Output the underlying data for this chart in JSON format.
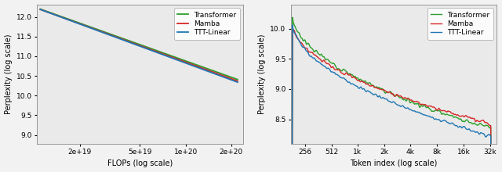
{
  "left": {
    "xlabel": "FLOPs (log scale)",
    "ylabel": "Perplexity (log scale)",
    "xlim": [
      1.05e+19,
      2.4e+20
    ],
    "ylim": [
      8.78,
      12.32
    ],
    "xticks": [
      2e+19,
      5e+19,
      1e+20,
      2e+20
    ],
    "xtick_labels": [
      "2e+19",
      "5e+19",
      "1e+20",
      "2e+20"
    ],
    "yticks": [
      9.0,
      9.5,
      10.0,
      10.5,
      11.0,
      11.5,
      12.0
    ],
    "transformer_color": "#2ca02c",
    "mamba_color": "#d62728",
    "ttt_color": "#1f77b4",
    "bg_color": "#eaeaea"
  },
  "right": {
    "xlabel": "Token index (log scale)",
    "ylabel": "Perplexity (log scale)",
    "xlim": [
      175,
      38000
    ],
    "ylim": [
      8.1,
      10.4
    ],
    "xticks": [
      256,
      512,
      1000,
      2000,
      4000,
      8000,
      16000,
      32000
    ],
    "xtick_labels": [
      "256",
      "512",
      "1k",
      "2k",
      "4k",
      "8k",
      "16k",
      "32k"
    ],
    "yticks": [
      8.5,
      9.0,
      9.5,
      10.0
    ],
    "transformer_color": "#2ca02c",
    "mamba_color": "#d62728",
    "ttt_color": "#1f77b4",
    "bg_color": "#eaeaea"
  },
  "fig_bg": "#f2f2f2"
}
